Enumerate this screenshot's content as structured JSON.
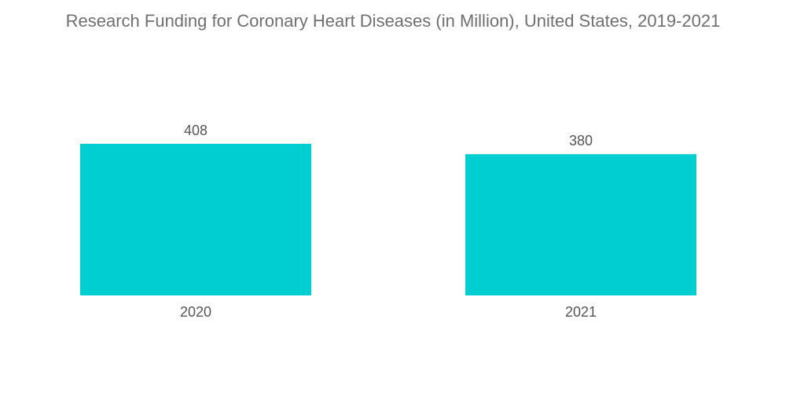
{
  "chart_data": {
    "type": "bar",
    "title": "Research Funding for Coronary Heart Diseases (in Million), United States, 2019-2021",
    "categories": [
      "2020",
      "2021"
    ],
    "values": [
      408,
      380
    ],
    "value_labels": [
      "408",
      "380"
    ],
    "xlabel": "",
    "ylabel": "",
    "ylim": [
      0,
      408
    ],
    "grid": false,
    "legend": "none",
    "bar_color": "#00CED1"
  }
}
